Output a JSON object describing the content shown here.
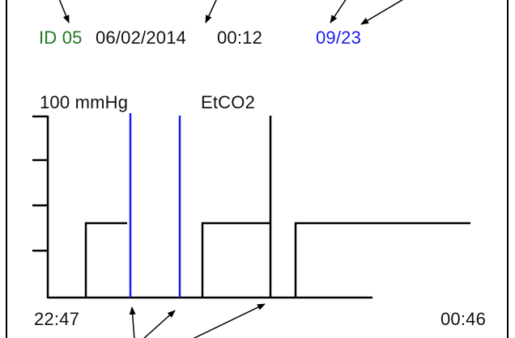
{
  "header": {
    "id_label": "ID 05",
    "date": "06/02/2014",
    "time": "00:12",
    "page": "09/23"
  },
  "plot": {
    "scale_label": "100 mmHg",
    "channel_label": "EtCO2",
    "x_start": "22:47",
    "x_end": "00:46"
  },
  "colors": {
    "id": "#1e7a1e",
    "text": "#111111",
    "page": "#1a1aee",
    "marker": "#1a1aee",
    "trace": "#000000",
    "border": "#000000"
  }
}
